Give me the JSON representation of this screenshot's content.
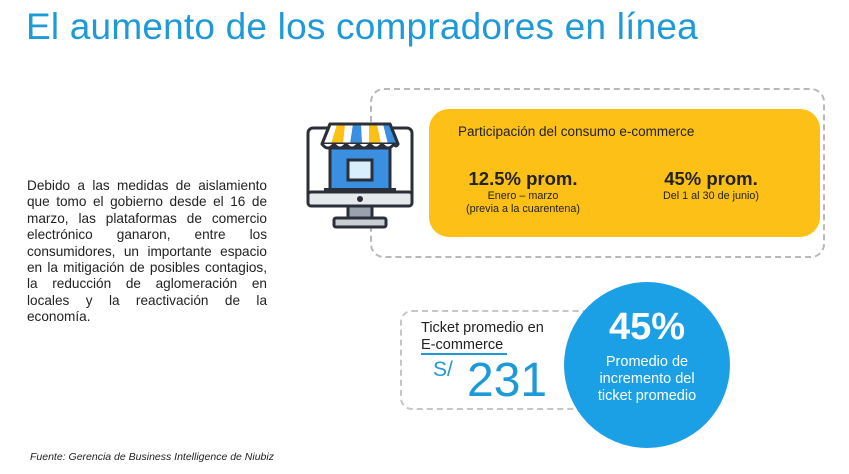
{
  "title": "El aumento de los compradores en línea",
  "body_text": "Debido a las medidas de aislamiento que tomo el gobierno desde el 16 de marzo, las plataformas de comercio electrónico ganaron, entre los consumidores, un importante espacio en la mitigación de posibles contagios, la reducción de aglomeración en locales y la reactivación de la economía.",
  "store_icon": "storefront-on-monitor-icon",
  "ecommerce_card": {
    "title": "Participación del consumo e-commerce",
    "stat_1": {
      "value": "12.5% prom.",
      "line_1": "Enero – marzo",
      "line_2": "(previa a la cuarentena)"
    },
    "stat_2": {
      "value": "45% prom.",
      "line_1": "Del 1 al 30 de junio)"
    }
  },
  "ticket": {
    "label_line_1": "Ticket promedio en",
    "label_line_2": "E-commerce",
    "currency": "S/",
    "amount": "231"
  },
  "increase": {
    "percent": "45%",
    "line_1": "Promedio de",
    "line_2": "incremento del",
    "line_3": "ticket promedio"
  },
  "source": "Fuente: Gerencia de Business Intelligence de Niubiz",
  "colors": {
    "accent_blue": "#1f9ad8",
    "circle_blue": "#1ba0e6",
    "card_yellow": "#fcc016",
    "icon_dark": "#2b2f3a"
  }
}
